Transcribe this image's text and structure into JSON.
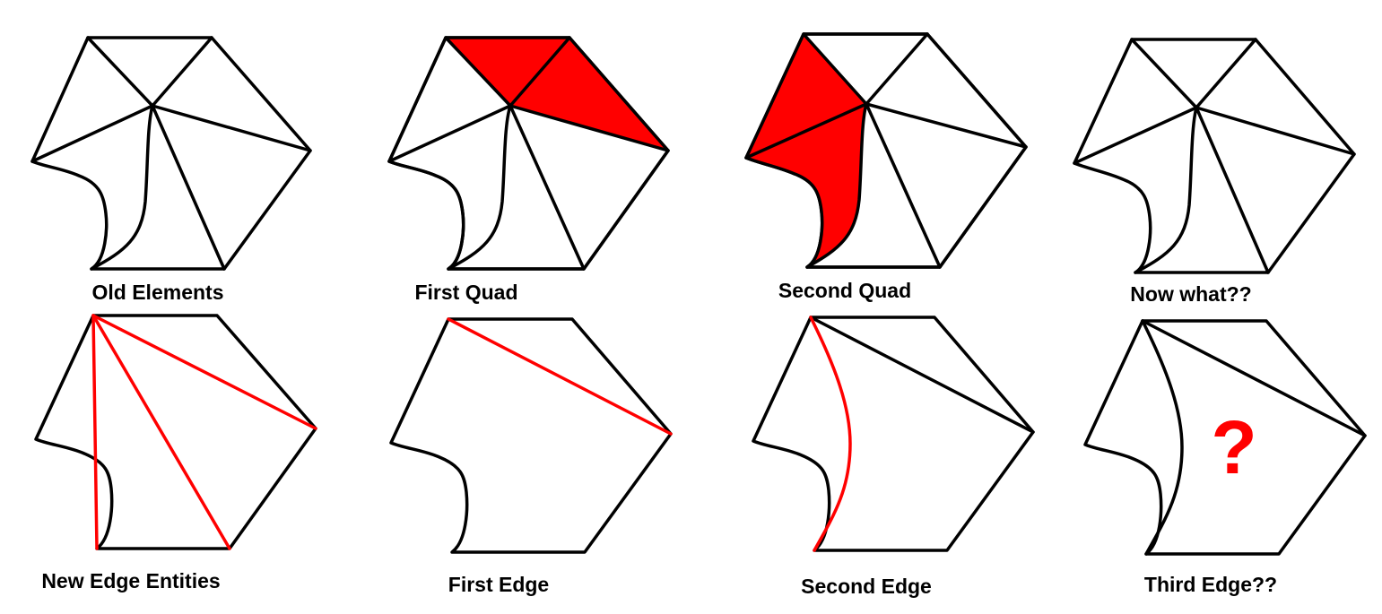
{
  "colors": {
    "line": "#000000",
    "highlight": "#ff0000",
    "background": "#ffffff"
  },
  "panels": {
    "old_elements": {
      "label": "Old Elements"
    },
    "first_quad": {
      "label": "First Quad"
    },
    "second_quad": {
      "label": "Second Quad"
    },
    "now_what": {
      "label": "Now what??"
    },
    "new_edge_entities": {
      "label": "New Edge Entities"
    },
    "first_edge": {
      "label": "First Edge"
    },
    "second_edge": {
      "label": "Second Edge"
    },
    "third_edge": {
      "label": "Third Edge??",
      "marker": "?"
    }
  }
}
